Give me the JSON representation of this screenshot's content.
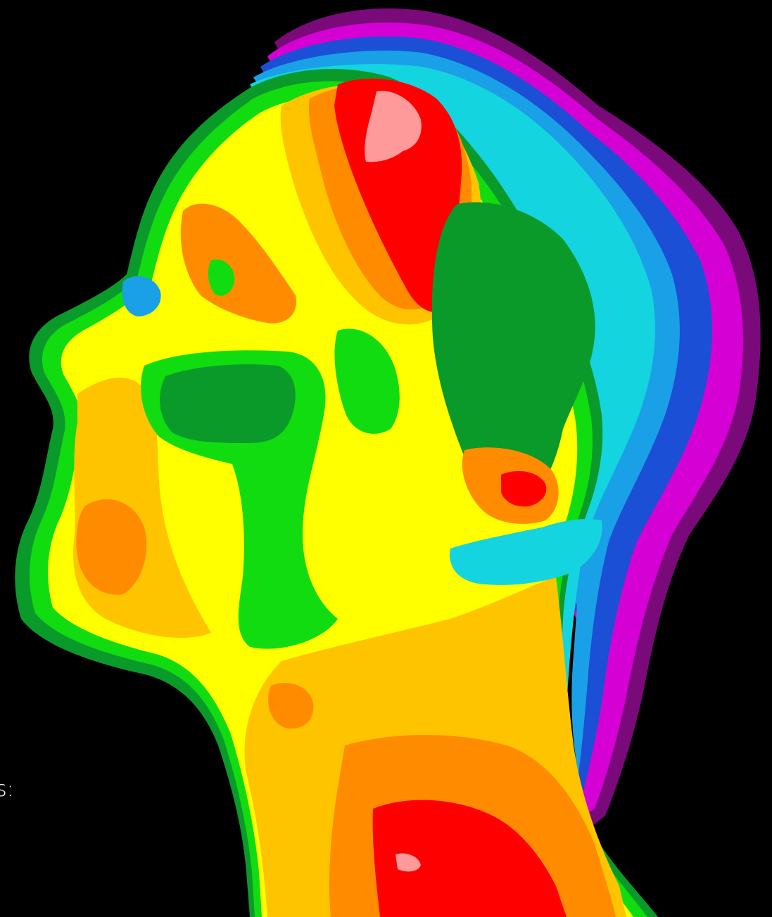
{
  "image": {
    "subject": "thermal-profile-head",
    "background_color": "#000000",
    "palette": {
      "magenta": "#d400d4",
      "purple": "#7a0a7a",
      "blue": "#1a4fd6",
      "light_blue": "#1aa0e6",
      "cyan": "#14d4e0",
      "dark_green": "#0a9a2a",
      "green": "#10dc10",
      "yellow": "#ffff00",
      "gold": "#ffc400",
      "orange": "#ff8c00",
      "red": "#ff0000",
      "pink": "#ff9a9a"
    }
  },
  "edge_text": "s:"
}
